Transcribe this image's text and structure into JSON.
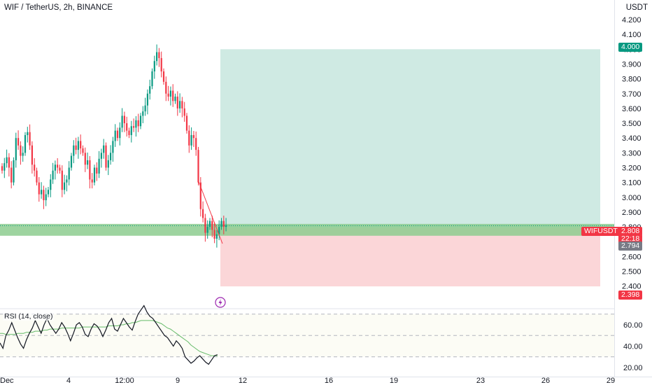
{
  "header": {
    "title": "WIF / TetherUS, 2h, BINANCE",
    "currency": "USDT"
  },
  "rsi": {
    "label": "RSI (14, close)"
  },
  "tags": {
    "target": "4.000",
    "symbol": "WIFUSDT",
    "last_price": "2.808",
    "countdown": "22:18",
    "entry": "2.794",
    "stop": "2.398"
  },
  "colors": {
    "up": "#089981",
    "down": "#f23645",
    "profit_zone": "#cfeae3",
    "loss_zone": "#fbd6d8",
    "support_band": "#8dcc8f",
    "rsi_line": "#131722",
    "rsi_ma": "#66bb6a"
  },
  "chart_data": [
    {
      "type": "candlestick",
      "title": "WIF / TetherUS, 2h, BINANCE",
      "ylabel": "USDT",
      "ylim": [
        2.35,
        4.24
      ],
      "y_ticks": [
        2.4,
        2.5,
        2.6,
        2.7,
        2.8,
        2.9,
        3.0,
        3.1,
        3.2,
        3.3,
        3.4,
        3.5,
        3.6,
        3.7,
        3.8,
        3.9,
        4.0,
        4.1,
        4.2
      ],
      "x_ticks": [
        "Dec",
        "4",
        "12:00",
        "9",
        "12",
        "16",
        "19",
        "23",
        "26",
        "29"
      ],
      "position_tool": {
        "entry": 2.794,
        "target": 4.0,
        "stop": 2.398
      },
      "support_zone": [
        2.74,
        2.82
      ],
      "last_price": 2.808,
      "closes": [
        3.18,
        3.23,
        3.27,
        3.2,
        3.1,
        3.25,
        3.4,
        3.35,
        3.28,
        3.3,
        3.42,
        3.44,
        3.35,
        3.22,
        3.18,
        3.1,
        3.02,
        3.05,
        2.98,
        3.02,
        3.05,
        3.12,
        3.18,
        3.22,
        3.2,
        3.18,
        3.05,
        3.1,
        3.12,
        3.2,
        3.28,
        3.35,
        3.32,
        3.38,
        3.33,
        3.3,
        3.22,
        3.25,
        3.12,
        3.1,
        3.2,
        3.16,
        3.26,
        3.3,
        3.35,
        3.2,
        3.25,
        3.3,
        3.38,
        3.45,
        3.4,
        3.47,
        3.55,
        3.5,
        3.45,
        3.42,
        3.48,
        3.47,
        3.52,
        3.48,
        3.55,
        3.58,
        3.62,
        3.7,
        3.75,
        3.85,
        3.92,
        3.98,
        3.94,
        3.85,
        3.78,
        3.7,
        3.68,
        3.72,
        3.65,
        3.68,
        3.6,
        3.65,
        3.6,
        3.55,
        3.45,
        3.35,
        3.42,
        3.4,
        3.32,
        3.1,
        2.92,
        2.86,
        2.76,
        2.8,
        2.84,
        2.78,
        2.72,
        2.75,
        2.8,
        2.84,
        2.8,
        2.808
      ]
    },
    {
      "type": "line",
      "title": "RSI (14, close)",
      "ylim": [
        15,
        80
      ],
      "y_ticks": [
        20.0,
        40.0,
        60.0
      ],
      "levels": [
        70,
        50,
        30
      ],
      "series": [
        {
          "values": [
            43,
            38,
            50,
            55,
            62,
            55,
            48,
            42,
            38,
            46,
            52,
            57,
            64,
            58,
            52,
            60,
            66,
            60,
            56,
            52,
            56,
            62,
            58,
            52,
            45,
            52,
            60,
            62,
            58,
            51,
            49,
            56,
            61,
            59,
            55,
            49,
            55,
            62,
            66,
            56,
            54,
            60,
            66,
            62,
            58,
            55,
            63,
            70,
            74,
            78,
            72,
            68,
            66,
            62,
            58,
            54,
            50,
            48,
            44,
            40,
            45,
            42,
            38,
            30,
            27,
            24,
            26,
            29,
            31,
            28,
            25,
            23,
            27,
            31,
            32
          ]
        },
        {
          "values": [
            52,
            52,
            51,
            51,
            51,
            51,
            52,
            52,
            52,
            53,
            53,
            53,
            54,
            54,
            54,
            55,
            55,
            56,
            56,
            56,
            56,
            57,
            57,
            57,
            57,
            57,
            57,
            57,
            58,
            58,
            58,
            58,
            58,
            58,
            58,
            58,
            58,
            59,
            59,
            59,
            59,
            60,
            60,
            61,
            61,
            62,
            62,
            63,
            64,
            64,
            64,
            64,
            64,
            63,
            62,
            61,
            59,
            57,
            56,
            54,
            52,
            50,
            48,
            46,
            44,
            41,
            39,
            37,
            35,
            34,
            33,
            32,
            31,
            31,
            31
          ]
        }
      ]
    }
  ]
}
